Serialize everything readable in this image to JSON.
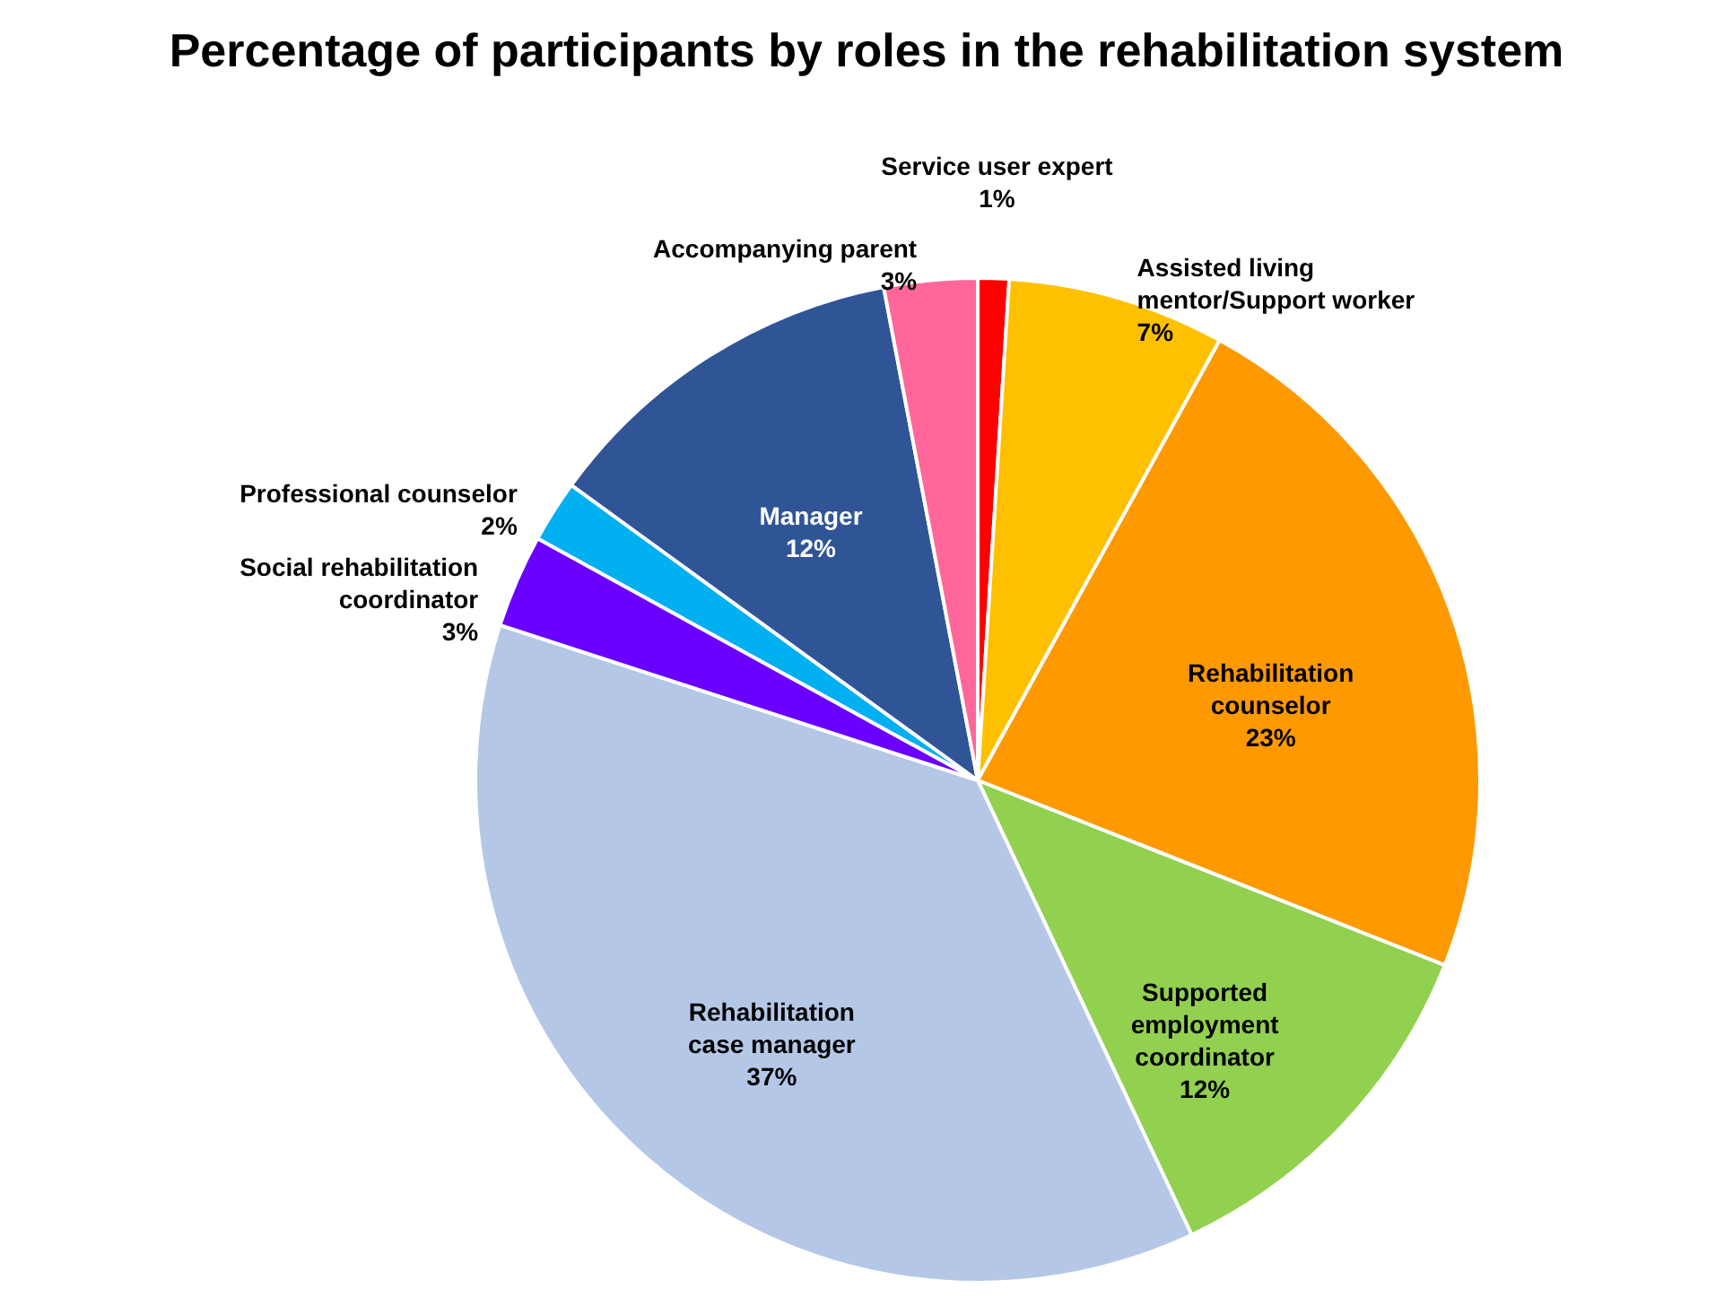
{
  "chart_data": {
    "type": "pie",
    "title": "Percentage of participants by roles in the rehabilitation system",
    "categories": [
      "Service user expert",
      "Assisted living mentor/Support worker",
      "Rehabilitation counselor",
      "Supported employment coordinator",
      "Rehabilitation case manager",
      "Social rehabilitation coordinator",
      "Professional counselor",
      "Manager",
      "Accompanying parent"
    ],
    "values": [
      1,
      7,
      23,
      12,
      37,
      3,
      2,
      12,
      3
    ],
    "colors": [
      "#ff0000",
      "#ffc000",
      "#ff9900",
      "#92d050",
      "#b4c7e7",
      "#6a00ff",
      "#00b0f0",
      "#2f5597",
      "#ff6699"
    ],
    "value_labels": [
      "1%",
      "7%",
      "23%",
      "12%",
      "37%",
      "3%",
      "2%",
      "12%",
      "3%"
    ]
  }
}
